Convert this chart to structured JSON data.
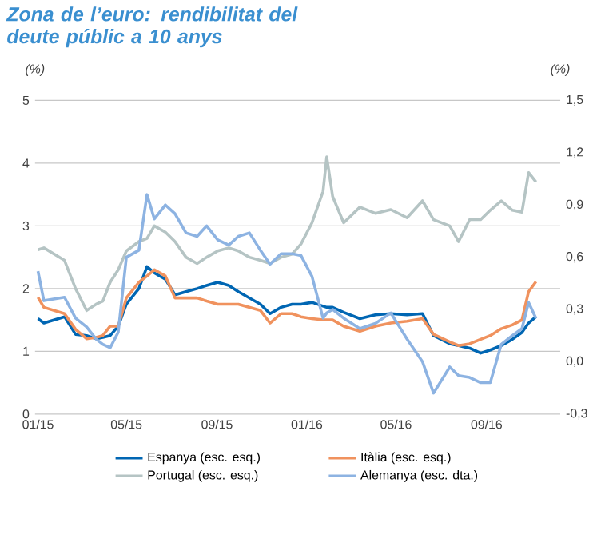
{
  "chart_data": {
    "type": "line",
    "title": "Zona de l’euro: rendibilitat del deute públic a 10 anys",
    "ylabel": "(%)",
    "y2label": "(%)",
    "x": [
      "2015-01-01",
      "2015-01-09",
      "2015-02-06",
      "2015-02-21",
      "2015-03-08",
      "2015-03-21",
      "2015-03-30",
      "2015-04-09",
      "2015-04-20",
      "2015-05-01",
      "2015-05-18",
      "2015-05-29",
      "2015-06-08",
      "2015-06-23",
      "2015-07-06",
      "2015-07-21",
      "2015-08-05",
      "2015-08-18",
      "2015-09-02",
      "2015-09-17",
      "2015-09-30",
      "2015-10-15",
      "2015-10-30",
      "2015-11-12",
      "2015-11-27",
      "2015-12-12",
      "2015-12-24",
      "2016-01-08",
      "2016-01-23",
      "2016-01-28",
      "2016-02-05",
      "2016-02-20",
      "2016-03-13",
      "2016-04-03",
      "2016-04-24",
      "2016-05-16",
      "2016-06-06",
      "2016-06-21",
      "2016-07-13",
      "2016-07-25",
      "2016-08-09",
      "2016-08-24",
      "2016-09-06",
      "2016-09-21",
      "2016-10-06",
      "2016-10-19",
      "2016-10-28",
      "2016-11-07"
    ],
    "series": [
      {
        "name": "Espanya (esc. esq.)",
        "color": "#0066b3",
        "values": [
          1.52,
          1.45,
          1.55,
          1.27,
          1.25,
          1.2,
          1.22,
          1.25,
          1.4,
          1.75,
          2.0,
          2.35,
          2.25,
          2.15,
          1.9,
          1.95,
          2.0,
          2.05,
          2.1,
          2.05,
          1.95,
          1.85,
          1.75,
          1.6,
          1.7,
          1.75,
          1.75,
          1.78,
          1.72,
          1.7,
          1.7,
          1.62,
          1.52,
          1.58,
          1.6,
          1.58,
          1.6,
          1.25,
          1.12,
          1.09,
          1.05,
          0.97,
          1.02,
          1.09,
          1.19,
          1.3,
          1.45,
          1.55
        ]
      },
      {
        "name": "Itàlia (esc. esq.)",
        "color": "#f0925e",
        "values": [
          1.86,
          1.7,
          1.6,
          1.35,
          1.2,
          1.22,
          1.25,
          1.4,
          1.4,
          1.85,
          2.1,
          2.2,
          2.3,
          2.2,
          1.85,
          1.85,
          1.85,
          1.8,
          1.75,
          1.75,
          1.75,
          1.7,
          1.65,
          1.45,
          1.6,
          1.6,
          1.55,
          1.52,
          1.5,
          1.5,
          1.5,
          1.4,
          1.32,
          1.4,
          1.45,
          1.48,
          1.52,
          1.27,
          1.15,
          1.09,
          1.12,
          1.19,
          1.25,
          1.36,
          1.42,
          1.5,
          1.95,
          2.11
        ]
      },
      {
        "name": "Portugal (esc. esq.)",
        "color": "#b5c4c4",
        "values": [
          2.62,
          2.65,
          2.45,
          2.0,
          1.65,
          1.75,
          1.8,
          2.1,
          2.3,
          2.6,
          2.75,
          2.8,
          3.0,
          2.9,
          2.75,
          2.5,
          2.4,
          2.5,
          2.6,
          2.65,
          2.6,
          2.5,
          2.45,
          2.4,
          2.5,
          2.55,
          2.71,
          3.05,
          3.55,
          4.1,
          3.47,
          3.05,
          3.3,
          3.2,
          3.26,
          3.13,
          3.4,
          3.1,
          3.0,
          2.75,
          3.1,
          3.1,
          3.25,
          3.4,
          3.25,
          3.22,
          3.85,
          3.7
        ]
      },
      {
        "name": "Alemanya (esc. dta.)",
        "color": "#8db3e2",
        "axis": "y2",
        "values": [
          0.52,
          0.35,
          0.37,
          0.25,
          0.2,
          0.13,
          0.1,
          0.08,
          0.17,
          0.6,
          0.64,
          0.96,
          0.82,
          0.9,
          0.85,
          0.74,
          0.72,
          0.78,
          0.7,
          0.67,
          0.72,
          0.74,
          0.64,
          0.56,
          0.62,
          0.62,
          0.61,
          0.49,
          0.25,
          0.28,
          0.3,
          0.25,
          0.19,
          0.22,
          0.28,
          0.13,
          0.0,
          -0.18,
          -0.03,
          -0.08,
          -0.09,
          -0.12,
          -0.12,
          0.1,
          0.15,
          0.19,
          0.34,
          0.25
        ]
      }
    ],
    "xlim": [
      "2014-12-28",
      "2016-12-10"
    ],
    "xticks": [
      {
        "value": "2015-01-01",
        "label": "01/15"
      },
      {
        "value": "2015-05-01",
        "label": "05/15"
      },
      {
        "value": "2015-09-01",
        "label": "09/15"
      },
      {
        "value": "2016-01-01",
        "label": "01/16"
      },
      {
        "value": "2016-05-01",
        "label": "05/16"
      },
      {
        "value": "2016-09-01",
        "label": "09/16"
      }
    ],
    "ylim": [
      0,
      5
    ],
    "yticks": [
      0,
      1,
      2,
      3,
      4,
      5
    ],
    "y2lim": [
      -0.3,
      1.5
    ],
    "y2ticks": [
      {
        "value": -0.3,
        "label": "-0,3"
      },
      {
        "value": 0.0,
        "label": "0,0"
      },
      {
        "value": 0.3,
        "label": "0,3"
      },
      {
        "value": 0.6,
        "label": "0,6"
      },
      {
        "value": 0.9,
        "label": "0,9"
      },
      {
        "value": 1.2,
        "label": "1,2"
      },
      {
        "value": 1.5,
        "label": "1,5"
      }
    ],
    "grid": "y",
    "legend": "bottom"
  }
}
